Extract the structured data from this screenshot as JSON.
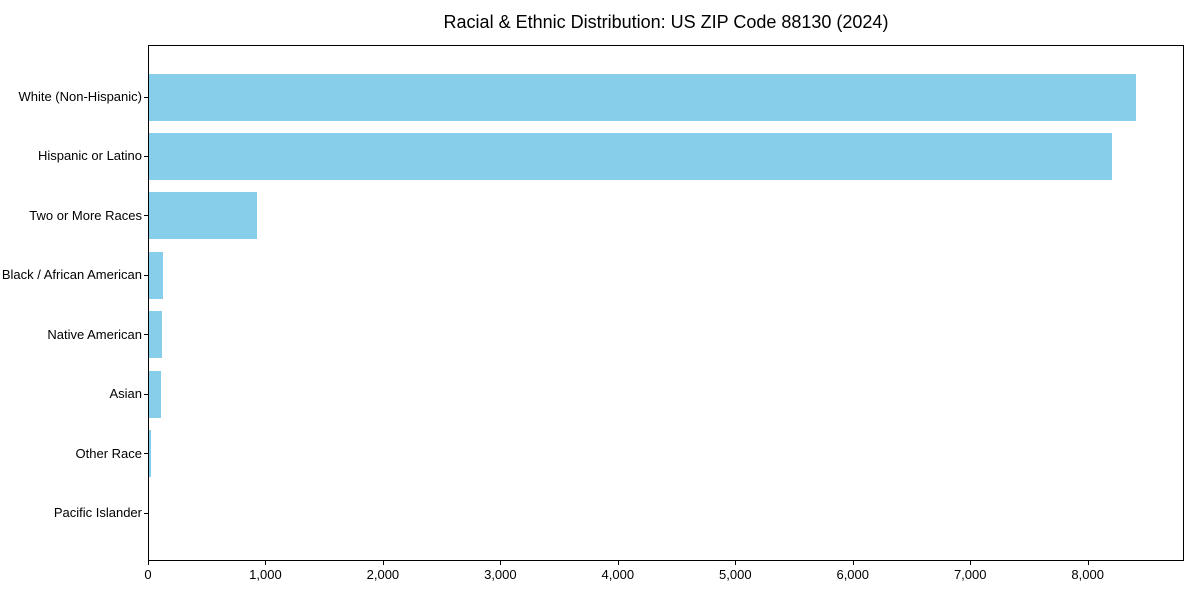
{
  "chart_data": {
    "type": "bar",
    "orientation": "horizontal",
    "title": "Racial & Ethnic Distribution: US ZIP Code 88130 (2024)",
    "categories": [
      "White (Non-Hispanic)",
      "Hispanic or Latino",
      "Two or More Races",
      "Black / African American",
      "Native American",
      "Asian",
      "Other Race",
      "Pacific Islander"
    ],
    "values": [
      8400,
      8200,
      920,
      120,
      110,
      100,
      20,
      0
    ],
    "xlabel": "",
    "ylabel": "",
    "xlim": [
      0,
      8820
    ],
    "xticks": [
      {
        "value": 0,
        "label": "0"
      },
      {
        "value": 1000,
        "label": "1,000"
      },
      {
        "value": 2000,
        "label": "2,000"
      },
      {
        "value": 3000,
        "label": "3,000"
      },
      {
        "value": 4000,
        "label": "4,000"
      },
      {
        "value": 5000,
        "label": "5,000"
      },
      {
        "value": 6000,
        "label": "6,000"
      },
      {
        "value": 7000,
        "label": "7,000"
      },
      {
        "value": 8000,
        "label": "8,000"
      }
    ],
    "grid": false,
    "legend": false,
    "bar_color": "#87ceeb",
    "axis_color": "#000000",
    "text_color": "#000000"
  }
}
